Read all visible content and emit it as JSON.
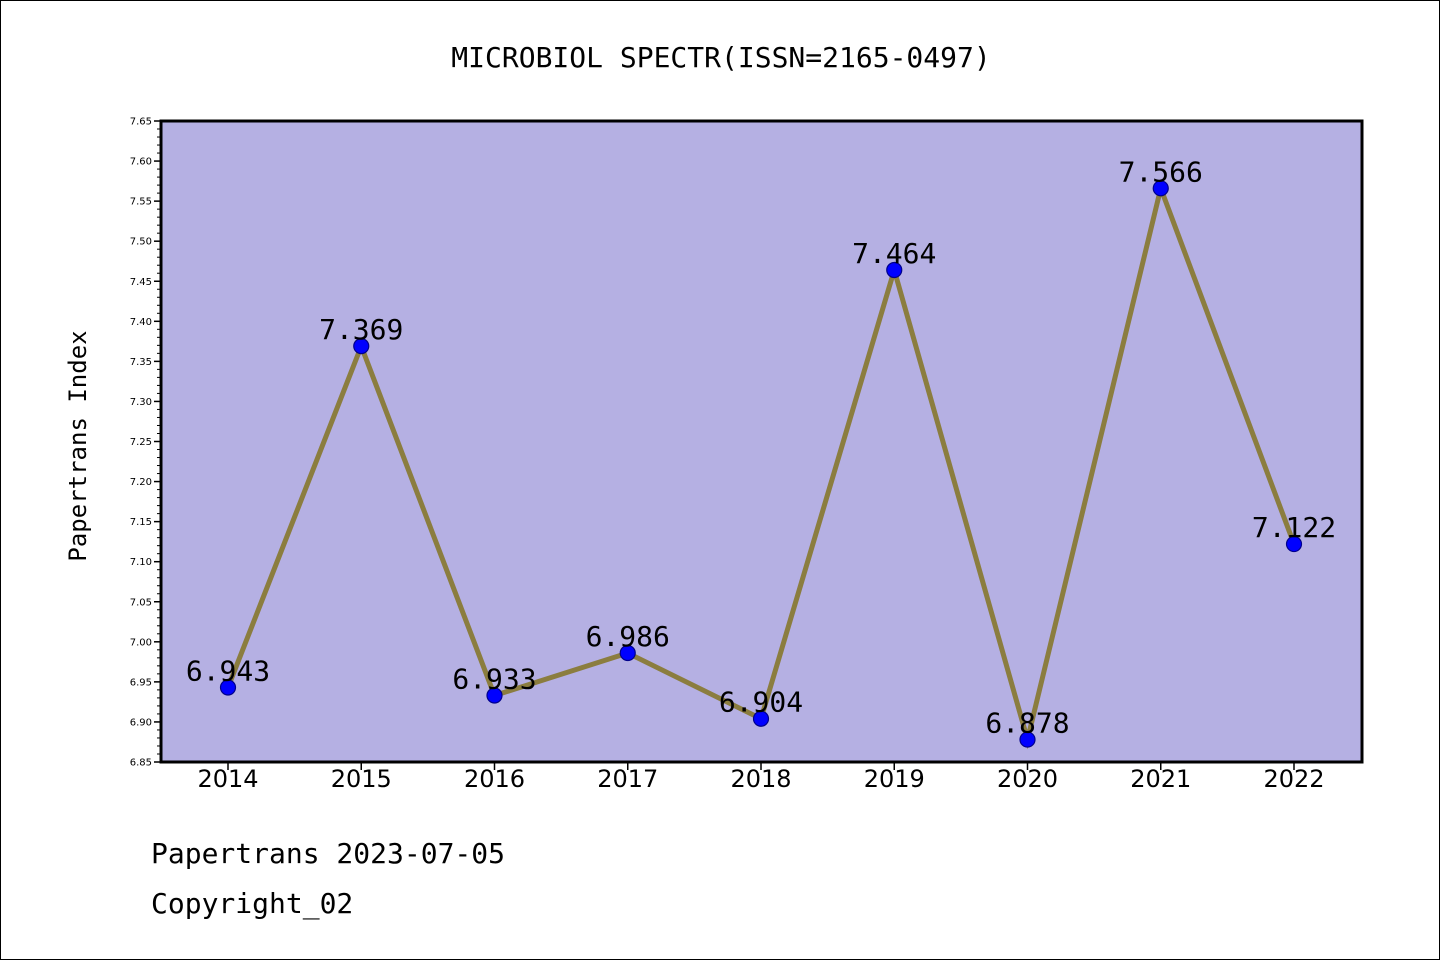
{
  "chart_data": {
    "type": "line",
    "title": "MICROBIOL SPECTR(ISSN=2165-0497)",
    "xlabel": "",
    "ylabel": "Papertrans Index",
    "categories": [
      "2014",
      "2015",
      "2016",
      "2017",
      "2018",
      "2019",
      "2020",
      "2021",
      "2022"
    ],
    "series": [
      {
        "values": [
          6.943,
          7.369,
          6.933,
          6.986,
          6.904,
          7.464,
          6.878,
          7.566,
          7.122
        ],
        "labels": [
          "6.943",
          "7.369",
          "6.933",
          "6.986",
          "6.904",
          "7.464",
          "6.878",
          "7.566",
          "7.122"
        ]
      }
    ],
    "ylim": [
      6.85,
      7.65
    ],
    "yticks": [
      "6.85",
      "6.90",
      "6.95",
      "7.00",
      "7.05",
      "7.10",
      "7.15",
      "7.20",
      "7.25",
      "7.30",
      "7.35",
      "7.40",
      "7.45",
      "7.50",
      "7.55",
      "7.60",
      "7.65"
    ],
    "grid": false,
    "legend": "none",
    "colors": {
      "plot_background": "#b5b0e3",
      "line": "#8b7d3f",
      "marker": "#0000ff",
      "marker_edge": "#00008b"
    }
  },
  "footer": {
    "line1": "Papertrans 2023-07-05",
    "line2": "Copyright_02"
  }
}
